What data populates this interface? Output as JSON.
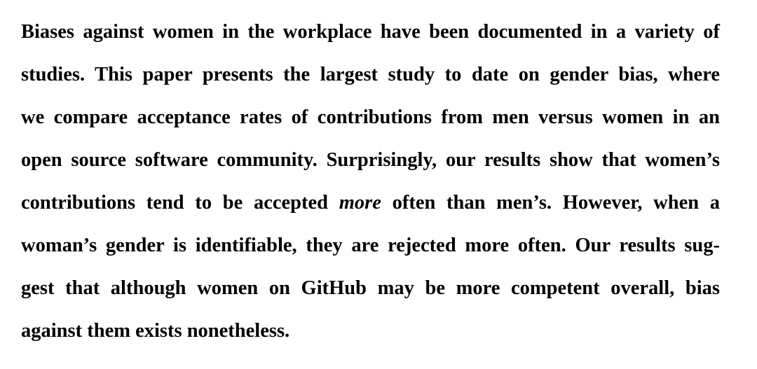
{
  "abstract": {
    "lines": [
      {
        "text": "Biases against women in the workplace have been documented in a variety of"
      },
      {
        "text": "studies.  This paper presents the largest study to date on gender bias, where"
      },
      {
        "text": "we compare acceptance rates of contributions from men versus women in an"
      },
      {
        "text": "open source software community. Surprisingly, our results show that women’s"
      },
      {
        "before": "contributions tend to be accepted ",
        "emphasis": "more",
        "after": " often than men’s.  However, when a"
      },
      {
        "text": "woman’s gender is identifiable, they are rejected more often. Our results sug-"
      },
      {
        "text": "gest that although women on GitHub may be more competent overall, bias"
      },
      {
        "text": "against them exists nonetheless."
      }
    ]
  }
}
